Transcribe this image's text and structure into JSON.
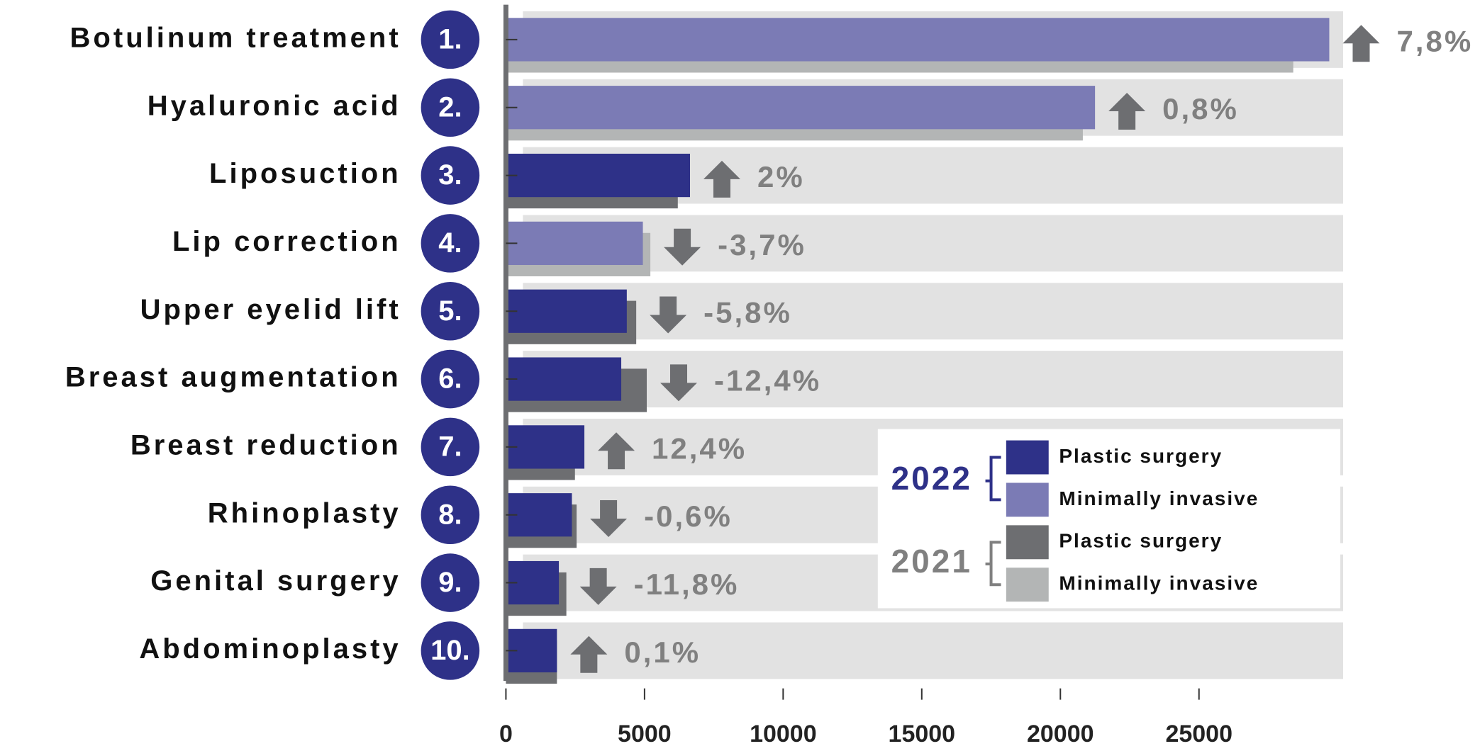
{
  "chart_data": {
    "type": "bar",
    "orientation": "horizontal",
    "categories": [
      "Botulinum treatment",
      "Hyaluronic acid",
      "Liposuction",
      "Lip correction",
      "Upper eyelid lift",
      "Breast augmentation",
      "Breast reduction",
      "Rhinoplasty",
      "Genital surgery",
      "Abdominoplasty"
    ],
    "ranks": [
      "1.",
      "2.",
      "3.",
      "4.",
      "5.",
      "6.",
      "7.",
      "8.",
      "9.",
      "10."
    ],
    "series": [
      {
        "name": "Plastic surgery",
        "group": "2022",
        "color": "#2e3188",
        "values": [
          null,
          null,
          6640,
          null,
          4360,
          4160,
          2830,
          2380,
          1910,
          1840
        ]
      },
      {
        "name": "Minimally invasive",
        "group": "2022",
        "color": "#7b7bb5",
        "values": [
          29700,
          21250,
          null,
          4940,
          null,
          null,
          null,
          null,
          null,
          null
        ]
      },
      {
        "name": "Plastic surgery",
        "group": "2021",
        "color": "#6d6e71",
        "values": [
          null,
          null,
          6200,
          null,
          4700,
          5080,
          2490,
          2550,
          2180,
          1840
        ]
      },
      {
        "name": "Minimally invasive",
        "group": "2021",
        "color": "#b3b5b5",
        "values": [
          28400,
          20810,
          null,
          5210,
          null,
          null,
          null,
          null,
          null,
          null
        ]
      }
    ],
    "changes": [
      {
        "value": 7.8,
        "label": "7,8%"
      },
      {
        "value": 0.8,
        "label": "0,8%"
      },
      2,
      {
        "value": -3.7,
        "label": "-3,7%"
      },
      {
        "value": -5.8,
        "label": "-5,8%"
      },
      {
        "value": -12.4,
        "label": "-12,4%"
      },
      {
        "value": 12.4,
        "label": "12,4%"
      },
      {
        "value": -0.6,
        "label": "-0,6%"
      },
      {
        "value": -11.8,
        "label": "-11,8%"
      },
      {
        "value": 0.1,
        "label": "0,1%"
      }
    ],
    "change_unit": "%",
    "xlim": [
      0,
      30200
    ],
    "xticks": [
      0,
      5000,
      10000,
      15000,
      20000,
      25000
    ]
  }
}
